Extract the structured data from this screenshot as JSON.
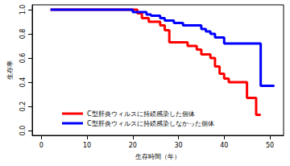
{
  "chart_data": {
    "type": "line",
    "line_style": "step",
    "x_label": "生存時間（年）",
    "y_label": "生存率",
    "xlim": [
      -2,
      53
    ],
    "xticks": [
      0,
      10,
      20,
      30,
      40,
      50
    ],
    "ylim": [
      -0.04,
      1.04
    ],
    "yticks": [
      {
        "value": 0,
        "label": "0.0"
      },
      {
        "value": 0.2,
        "label": "0.2"
      },
      {
        "value": 0.4,
        "label": "0.4"
      },
      {
        "value": 0.6,
        "label": "0.6"
      },
      {
        "value": 0.8,
        "label": "0.8"
      },
      {
        "value": 1,
        "label": "1.0"
      }
    ],
    "grid": false,
    "legend": "lower left",
    "series": [
      {
        "name": "C型肝炎ウィルスに持続感染した個体",
        "color": "#ff0000",
        "x": [
          2,
          21,
          22,
          23.5,
          26,
          27,
          28,
          32,
          34,
          35,
          37,
          38,
          39,
          40,
          41,
          45,
          47,
          48
        ],
        "values": [
          1.0,
          0.97,
          0.93,
          0.9,
          0.87,
          0.83,
          0.73,
          0.7,
          0.67,
          0.63,
          0.6,
          0.53,
          0.47,
          0.43,
          0.4,
          0.27,
          0.13,
          0.13
        ]
      },
      {
        "name": "C型肝炎ウィルスに持続感染しなかった個体",
        "color": "#0000ff",
        "x": [
          2,
          20,
          23,
          24,
          26,
          27,
          29,
          31,
          35,
          36,
          37,
          38,
          40,
          48,
          51
        ],
        "values": [
          1.0,
          0.98,
          0.96,
          0.95,
          0.93,
          0.91,
          0.89,
          0.87,
          0.84,
          0.82,
          0.8,
          0.77,
          0.72,
          0.37,
          0.37
        ]
      }
    ]
  }
}
